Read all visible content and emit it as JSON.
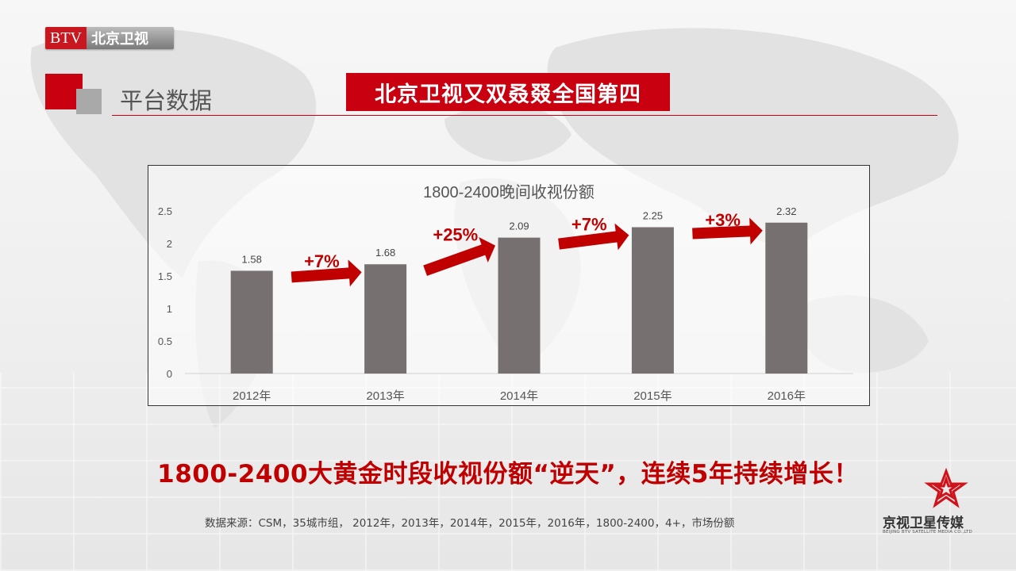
{
  "header": {
    "logo_btv": "BTV",
    "logo_cn": "北京卫视",
    "section_title": "平台数据",
    "banner": "北京卫视又双叒叕全国第四"
  },
  "chart_data": {
    "type": "bar",
    "title": "1800-2400晚间收视份额",
    "categories": [
      "2012年",
      "2013年",
      "2014年",
      "2015年",
      "2016年"
    ],
    "values": [
      1.58,
      1.68,
      2.09,
      2.25,
      2.32
    ],
    "data_labels": [
      "1.58",
      "1.68",
      "2.09",
      "2.25",
      "2.32"
    ],
    "ylim": [
      0,
      2.5
    ],
    "yticks": [
      "0",
      "0.5",
      "1",
      "1.5",
      "2",
      "2.5"
    ],
    "bar_color": "#767070",
    "growth_labels": [
      "+7%",
      "+25%",
      "+7%",
      "+3%"
    ],
    "growth_color": "#c00000",
    "grid": false
  },
  "headline": "1800-2400大黄金时段收视份额“逆天”，连续5年持续增长！",
  "source": "数据来源：CSM，35城市组， 2012年，2013年，2014年，2015年，2016年，1800-2400，4+，市场份额",
  "brand": {
    "name": "京视卫星传媒",
    "english": "BEIJING BTV SATELLITE MEDIA CO.,LTD"
  },
  "colors": {
    "accent": "#c8000f",
    "gray": "#a9a9a9"
  }
}
